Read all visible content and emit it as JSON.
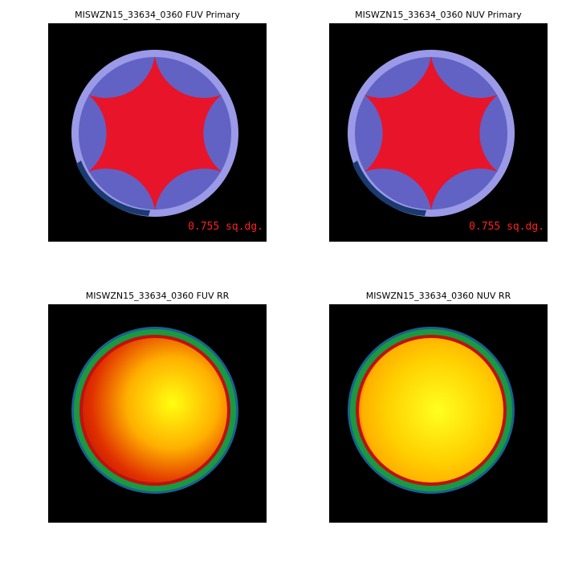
{
  "panels": [
    {
      "title": "MISWZN15_33634_0360 FUV Primary",
      "area": "0.755 sq.dg."
    },
    {
      "title": "MISWZN15_33634_0360 NUV Primary",
      "area": "0.755 sq.dg."
    },
    {
      "title": "MISWZN15_33634_0360 FUV RR"
    },
    {
      "title": "MISWZN15_33634_0360 NUV RR"
    }
  ]
}
